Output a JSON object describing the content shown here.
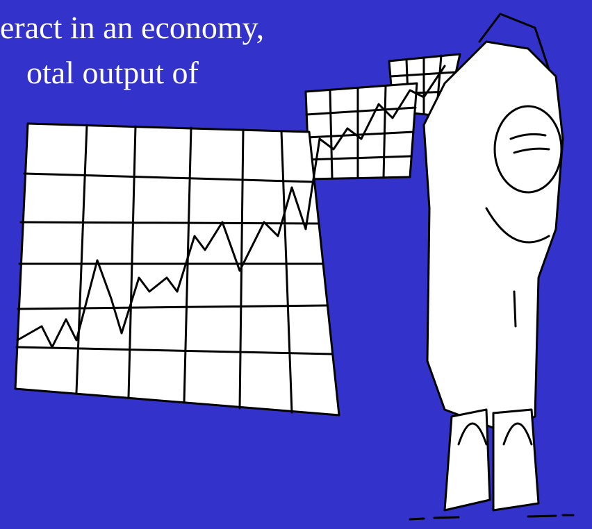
{
  "text": {
    "lines": [
      "eract in an economy,",
      "otal output of"
    ]
  }
}
